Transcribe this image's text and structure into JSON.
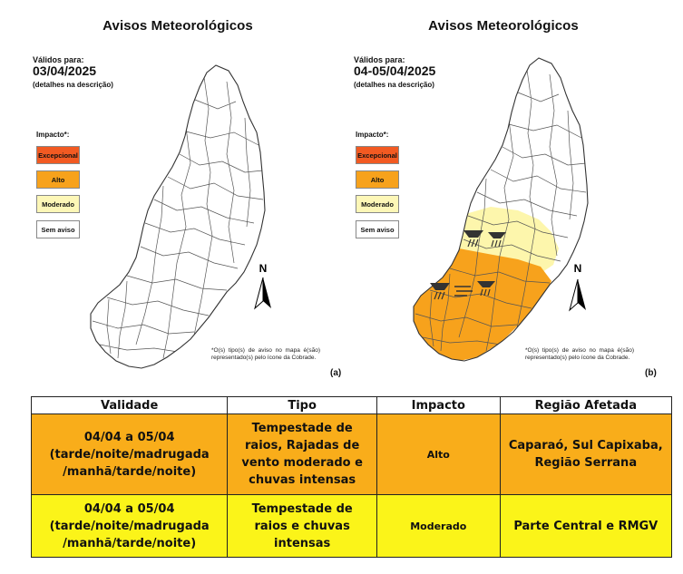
{
  "panel_a": {
    "title": "Avisos Meteorológicos",
    "valid_label": "Válidos para:",
    "valid_date": "03/04/2025",
    "valid_note": "(detalhes na descrição)",
    "tag": "(a)"
  },
  "panel_b": {
    "title": "Avisos Meteorológicos",
    "valid_label": "Válidos para:",
    "valid_date": "04-05/04/2025",
    "valid_note": "(detalhes na descrição)",
    "tag": "(b)"
  },
  "legend": {
    "title": "Impacto*:",
    "items": [
      {
        "label": "Excepcional",
        "color": "#f25a22"
      },
      {
        "label": "Alto",
        "color": "#f7a21c"
      },
      {
        "label": "Moderado",
        "color": "#fdf7b7"
      },
      {
        "label": "Sem aviso",
        "color": "#ffffff"
      }
    ]
  },
  "north_label": "N",
  "footnote": "*O(s) tipo(s) de aviso no mapa é(são) representado(s) pelo ícone da Cobrade.",
  "table": {
    "headers": [
      "Validade",
      "Tipo",
      "Impacto",
      "Região Afetada"
    ],
    "rows": [
      {
        "validade": "04/04 a 05/04 (tarde/noite/madrugada /manhã/tarde/noite)",
        "tipo": "Tempestade de raios, Rajadas de vento moderado e chuvas intensas",
        "impacto": "Alto",
        "regiao": "Caparaó, Sul Capixaba, Região Serrana",
        "color": "#f9ad1a"
      },
      {
        "validade": "04/04 a 05/04 (tarde/noite/madrugada /manhã/tarde/noite)",
        "tipo": "Tempestade de raios e chuvas intensas",
        "impacto": "Moderado",
        "regiao": "Parte Central e RMGV",
        "color": "#fbf419"
      }
    ]
  }
}
